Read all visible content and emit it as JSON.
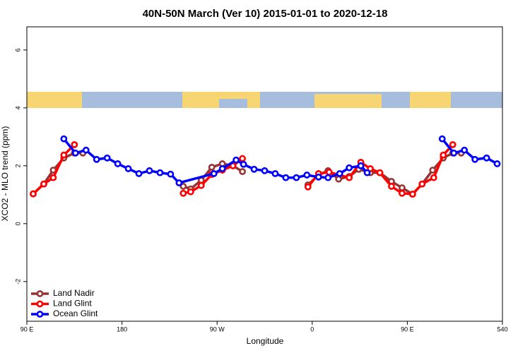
{
  "chart_data": {
    "type": "line",
    "title": "40N-50N March (Ver 10)   2015-01-01 to 2020-12-18",
    "x_label": "Longitude",
    "y_label": "XCO2 - MLO trend (ppm)",
    "xlim": [
      90,
      540
    ],
    "ylim": [
      -3.37,
      6.8
    ],
    "xticks": [
      {
        "value": 90,
        "label": "90 E"
      },
      180,
      {
        "value": 270,
        "label": "90 W"
      },
      {
        "value": 360,
        "label": "0"
      },
      {
        "value": 450,
        "label": "90 E"
      },
      540
    ],
    "yticks": [
      -2,
      0,
      2,
      4,
      6
    ],
    "legend": "bottom-left",
    "series": [
      {
        "name": "Land Nadir",
        "color": "#993333",
        "x": [
          96,
          106,
          115,
          125,
          135,
          143,
          null,
          238,
          245,
          255,
          265,
          275,
          285,
          294,
          null,
          356,
          366,
          375,
          385,
          395,
          404,
          415,
          424,
          435,
          445,
          455,
          464,
          474,
          484,
          493,
          501
        ],
        "values": [
          1.03,
          1.37,
          1.85,
          2.27,
          2.44,
          2.44,
          null,
          1.29,
          1.2,
          1.5,
          1.95,
          2.07,
          2.0,
          1.8,
          null,
          1.34,
          1.68,
          1.83,
          1.54,
          1.63,
          1.88,
          1.76,
          1.76,
          1.46,
          1.24,
          1.02,
          1.37,
          1.85,
          2.27,
          2.44,
          2.44
        ]
      },
      {
        "name": "Land Glint",
        "color": "#ff0000",
        "x": [
          96,
          106,
          115,
          125,
          135,
          null,
          238,
          245,
          255,
          265,
          275,
          285,
          294,
          null,
          356,
          366,
          376,
          395,
          406,
          415,
          424,
          435,
          445,
          455,
          464,
          475,
          484,
          493
        ],
        "values": [
          1.03,
          1.37,
          1.59,
          2.37,
          2.73,
          null,
          1.05,
          1.1,
          1.32,
          1.7,
          1.85,
          2.0,
          2.25,
          null,
          1.27,
          1.73,
          1.78,
          1.59,
          2.12,
          1.9,
          1.76,
          1.29,
          1.05,
          1.02,
          1.37,
          1.59,
          2.37,
          2.73
        ]
      },
      {
        "name": "Ocean Glint",
        "color": "#0000ff",
        "x": [
          125,
          136,
          146,
          156,
          166,
          176,
          186,
          196,
          206,
          216,
          226,
          234,
          267,
          275,
          288,
          295,
          305,
          315,
          325,
          335,
          345,
          355,
          366,
          375,
          386,
          395,
          406,
          412,
          null,
          483,
          494,
          504,
          514,
          525,
          535
        ],
        "values": [
          2.93,
          2.44,
          2.54,
          2.22,
          2.27,
          2.07,
          1.9,
          1.73,
          1.83,
          1.76,
          1.71,
          1.41,
          1.73,
          1.9,
          2.2,
          2.05,
          1.88,
          1.83,
          1.73,
          1.59,
          1.59,
          1.68,
          1.61,
          1.59,
          1.73,
          1.93,
          2.0,
          1.76,
          null,
          2.93,
          2.44,
          2.54,
          2.22,
          2.27,
          2.07
        ]
      }
    ]
  }
}
